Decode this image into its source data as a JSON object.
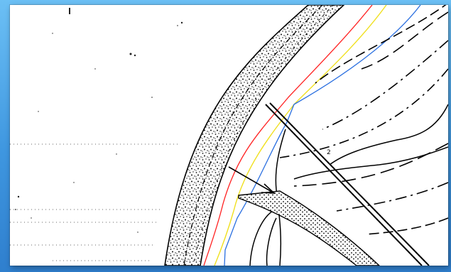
{
  "image": {
    "kind": "scanned-line-drawing",
    "frame_color": "#3f97e0",
    "paper_color": "#ffffff"
  },
  "overlay_lines": [
    {
      "name": "red-line",
      "color": "#ff2020"
    },
    {
      "name": "yellow-line",
      "color": "#f0e020"
    },
    {
      "name": "blue-line",
      "color": "#2a6fe0"
    }
  ],
  "labels": {
    "small_number": "2"
  }
}
